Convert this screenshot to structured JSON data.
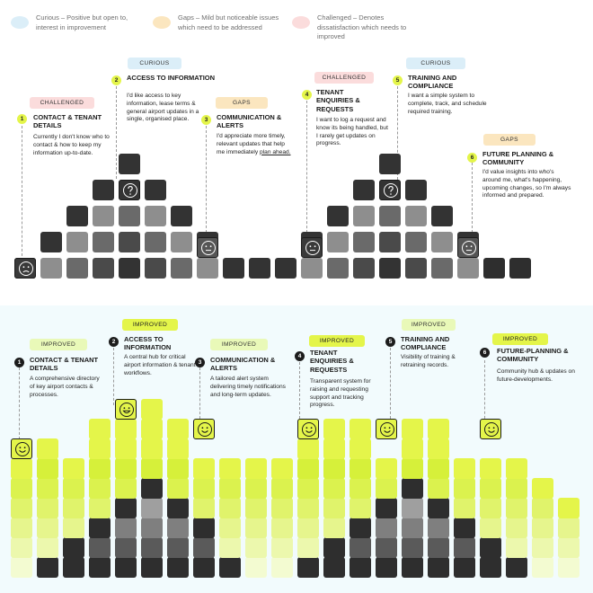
{
  "legend": [
    {
      "key": "curious",
      "text": "Curious – Positive but open to, interest in improvement",
      "color": "#dbeef8"
    },
    {
      "key": "gaps",
      "text": "Gaps – Mild but noticeable issues which need to be addressed",
      "color": "#fbe6bf"
    },
    {
      "key": "challenged",
      "text": "Challenged – Denotes dissatisfaction which needs to improved",
      "color": "#fbdcdc"
    }
  ],
  "current_state": {
    "personas": [
      {
        "number": "1",
        "badge": "CHALLENGED",
        "title": "CONTACT & TENANT DETAILS",
        "description": "Currently I don't know who to contact & how to keep my information up-to-date."
      },
      {
        "number": "2",
        "badge": "CURIOUS",
        "title": "ACCESS TO INFORMATION",
        "description": "I'd like access to key information, lease terms & general airport updates in a single, organised place."
      },
      {
        "number": "3",
        "badge": "GAPS",
        "title": "COMMUNICATION & ALERTS",
        "description": "I'd appreciate more timely, relevant updates that help me immediately ",
        "description_underlined": "plan ahead."
      },
      {
        "number": "4",
        "badge": "CHALLENGED",
        "title": "TENANT ENQUIRIES & REQUESTS",
        "description": "I want to log a request and know its being handled, but I rarely get updates on progress."
      },
      {
        "number": "5",
        "badge": "CURIOUS",
        "title": "TRAINING AND COMPLIANCE",
        "description": "I want a simple system to complete, track, and schedule required training."
      },
      {
        "number": "6",
        "badge": "GAPS",
        "title": "FUTURE PLANNING & COMMUNITY",
        "description": "I'd value insights into who's around me, what's happening, upcoming changes, so I'm always informed and prepared."
      }
    ],
    "faces": [
      {
        "emotion": "sad",
        "color": "#3a3a3a"
      },
      {
        "emotion": "confused",
        "color": "#333333"
      },
      {
        "emotion": "neutral",
        "color": "#555555"
      },
      {
        "emotion": "neutral",
        "color": "#3a3a3a"
      },
      {
        "emotion": "confused",
        "color": "#333333"
      },
      {
        "emotion": "neutral",
        "color": "#555555"
      }
    ]
  },
  "future_state": {
    "personas": [
      {
        "number": "1",
        "badge": "IMPROVED",
        "title": "CONTACT & TENANT DETAILS",
        "description": "A comprehensive directory of key airport contacts & processes."
      },
      {
        "number": "2",
        "badge": "IMPROVED",
        "title": "ACCESS TO INFORMATION",
        "description": "A central hub for critical airport information & tenant workflows."
      },
      {
        "number": "3",
        "badge": "IMPROVED",
        "title": "COMMUNICATION & ALERTS",
        "description": "A tailored alert system delivering timely notifications and long-term updates."
      },
      {
        "number": "4",
        "badge": "IMPROVED",
        "title": "TENANT ENQUIRIES & REQUESTS",
        "description": "Transparent system for raising and requesting support and tracking progress."
      },
      {
        "number": "5",
        "badge": "IMPROVED",
        "title": "TRAINING AND COMPLIANCE",
        "description": "Visibility of training & retraining records."
      },
      {
        "number": "6",
        "badge": "IMPROVED",
        "title": "FUTURE-PLANNING & COMMUNITY",
        "description": "Community hub & updates on future-developments."
      }
    ],
    "faces": [
      {
        "emotion": "happy",
        "color": "#e4f54a"
      },
      {
        "emotion": "delighted",
        "color": "#e4f54a"
      },
      {
        "emotion": "happy",
        "color": "#e4f54a"
      },
      {
        "emotion": "happy",
        "color": "#e4f54a"
      },
      {
        "emotion": "happy",
        "color": "#e4f54a"
      },
      {
        "emotion": "happy",
        "color": "#e4f54a"
      }
    ]
  }
}
